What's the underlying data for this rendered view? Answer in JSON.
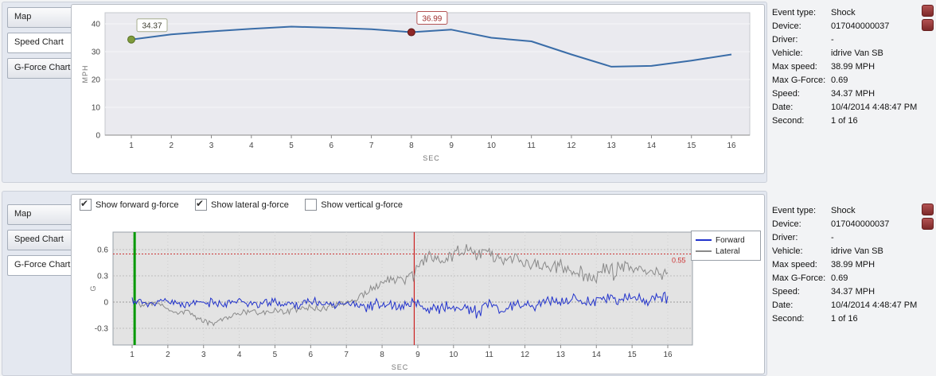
{
  "panels": {
    "top": {
      "tabs": [
        {
          "label": "Map",
          "selected": false
        },
        {
          "label": "Speed Chart",
          "selected": true
        },
        {
          "label": "G-Force Chart",
          "selected": false
        }
      ]
    },
    "bottom": {
      "tabs": [
        {
          "label": "Map",
          "selected": false
        },
        {
          "label": "Speed Chart",
          "selected": false
        },
        {
          "label": "G-Force Chart",
          "selected": true
        }
      ],
      "checkboxes": [
        {
          "label": "Show forward g-force",
          "checked": true
        },
        {
          "label": "Show lateral g-force",
          "checked": true
        },
        {
          "label": "Show vertical g-force",
          "checked": false
        }
      ]
    }
  },
  "event_info": {
    "rows": [
      {
        "label": "Event type:",
        "value": "Shock"
      },
      {
        "label": "Device:",
        "value": "017040000037"
      },
      {
        "label": "Driver:",
        "value": "-"
      },
      {
        "label": "Vehicle:",
        "value": "idrive Van SB"
      },
      {
        "label": "Max speed:",
        "value": "38.99 MPH"
      },
      {
        "label": "Max G-Force:",
        "value": "0.69"
      },
      {
        "label": "Speed:",
        "value": "34.37 MPH"
      },
      {
        "label": "Date:",
        "value": "10/4/2014 4:48:47 PM"
      },
      {
        "label": "Second:",
        "value": "1 of 16"
      }
    ]
  },
  "chart_data": [
    {
      "type": "line",
      "title": "",
      "xlabel": "SEC",
      "ylabel": "MPH",
      "x": [
        1,
        2,
        3,
        4,
        5,
        6,
        7,
        8,
        9,
        10,
        11,
        12,
        13,
        14,
        15,
        16
      ],
      "values": [
        34.37,
        36.2,
        37.3,
        38.2,
        38.99,
        38.6,
        38.1,
        36.99,
        37.9,
        35.0,
        33.7,
        29.0,
        24.6,
        24.9,
        26.8,
        29.0
      ],
      "ylim": [
        0,
        40
      ],
      "yticks": [
        0,
        10,
        20,
        30,
        40
      ],
      "grid": true,
      "line_color": "#3a6da8",
      "plot_bg": "#eaeaef",
      "markers": [
        {
          "x": 1,
          "y": 34.37,
          "label": "34.37",
          "dot_color": "#7e9b3c",
          "dot_stroke": "#5a7226",
          "box_border": "#a6ac8e",
          "text_color": "#3c3c2e"
        },
        {
          "x": 8,
          "y": 36.99,
          "label": "36.99",
          "dot_color": "#8e2727",
          "dot_stroke": "#5e1616",
          "box_border": "#b35454",
          "text_color": "#a03030"
        }
      ]
    },
    {
      "type": "line",
      "title": "",
      "xlabel": "SEC",
      "ylabel": "G",
      "xticks": [
        1,
        2,
        3,
        4,
        5,
        6,
        7,
        8,
        9,
        10,
        11,
        12,
        13,
        14,
        15,
        16
      ],
      "yticks": [
        -0.3,
        0,
        0.3,
        0.6
      ],
      "ylim": [
        -0.49,
        0.8
      ],
      "grid": true,
      "plot_bg": "#e3e3e3",
      "legend_position": "right",
      "threshold": {
        "value": 0.55,
        "label": "0.55",
        "color": "#cc3333"
      },
      "vlines": [
        {
          "x": 1.07,
          "color": "#009900",
          "width": 3
        },
        {
          "x": 8.9,
          "color": "#cc2222",
          "width": 1.2
        }
      ],
      "series": [
        {
          "name": "Forward",
          "color": "#2233cc",
          "seed": 11,
          "anchors": [
            [
              1,
              0.02
            ],
            [
              1.5,
              -0.02
            ],
            [
              2,
              0.01
            ],
            [
              2.5,
              -0.03
            ],
            [
              3,
              0.0
            ],
            [
              3.5,
              -0.02
            ],
            [
              4,
              0.01
            ],
            [
              4.5,
              -0.02
            ],
            [
              5,
              0.0
            ],
            [
              5.5,
              -0.03
            ],
            [
              6,
              0.0
            ],
            [
              6.5,
              -0.02
            ],
            [
              7,
              -0.01
            ],
            [
              7.5,
              -0.05
            ],
            [
              8,
              -0.02
            ],
            [
              8.5,
              -0.07
            ],
            [
              9,
              -0.03
            ],
            [
              9.3,
              -0.1
            ],
            [
              9.6,
              -0.04
            ],
            [
              10,
              -0.09
            ],
            [
              10.3,
              -0.03
            ],
            [
              10.6,
              -0.12
            ],
            [
              11,
              -0.04
            ],
            [
              11.4,
              -0.1
            ],
            [
              11.8,
              -0.02
            ],
            [
              12.2,
              -0.06
            ],
            [
              12.6,
              0.02
            ],
            [
              13,
              -0.01
            ],
            [
              13.4,
              0.05
            ],
            [
              13.8,
              0.0
            ],
            [
              14.2,
              0.06
            ],
            [
              14.6,
              0.02
            ],
            [
              15,
              0.05
            ],
            [
              15.4,
              0.01
            ],
            [
              15.7,
              0.06
            ],
            [
              16,
              0.04
            ]
          ],
          "noise": [
            [
              1,
              0.035
            ],
            [
              7,
              0.035
            ],
            [
              8,
              0.05
            ],
            [
              9,
              0.06
            ],
            [
              11,
              0.06
            ],
            [
              12,
              0.045
            ],
            [
              16,
              0.045
            ]
          ]
        },
        {
          "name": "Lateral",
          "color": "#8a8a8a",
          "seed": 97,
          "anchors": [
            [
              1,
              0.02
            ],
            [
              1.3,
              -0.04
            ],
            [
              1.6,
              0.01
            ],
            [
              2,
              -0.08
            ],
            [
              2.3,
              -0.13
            ],
            [
              2.6,
              -0.1
            ],
            [
              3,
              -0.22
            ],
            [
              3.3,
              -0.24
            ],
            [
              3.6,
              -0.18
            ],
            [
              4,
              -0.13
            ],
            [
              4.3,
              -0.1
            ],
            [
              4.6,
              -0.13
            ],
            [
              5,
              -0.09
            ],
            [
              5.3,
              -0.12
            ],
            [
              5.6,
              -0.08
            ],
            [
              6,
              -0.06
            ],
            [
              6.3,
              -0.09
            ],
            [
              6.6,
              -0.04
            ],
            [
              7,
              -0.02
            ],
            [
              7.3,
              0.05
            ],
            [
              7.6,
              0.12
            ],
            [
              8,
              0.22
            ],
            [
              8.3,
              0.28
            ],
            [
              8.6,
              0.24
            ],
            [
              8.9,
              0.32
            ],
            [
              9.1,
              0.48
            ],
            [
              9.4,
              0.5
            ],
            [
              9.7,
              0.46
            ],
            [
              9.9,
              0.52
            ],
            [
              10.1,
              0.6
            ],
            [
              10.3,
              0.55
            ],
            [
              10.5,
              0.62
            ],
            [
              10.7,
              0.52
            ],
            [
              11,
              0.56
            ],
            [
              11.3,
              0.5
            ],
            [
              11.6,
              0.52
            ],
            [
              12,
              0.45
            ],
            [
              12.3,
              0.42
            ],
            [
              12.6,
              0.38
            ],
            [
              13,
              0.42
            ],
            [
              13.3,
              0.36
            ],
            [
              13.6,
              0.32
            ],
            [
              14,
              0.28
            ],
            [
              14.2,
              0.42
            ],
            [
              14.5,
              0.33
            ],
            [
              14.8,
              0.42
            ],
            [
              15,
              0.36
            ],
            [
              15.3,
              0.39
            ],
            [
              15.6,
              0.34
            ],
            [
              16,
              0.3
            ]
          ],
          "noise": [
            [
              1,
              0.025
            ],
            [
              7,
              0.025
            ],
            [
              8,
              0.04
            ],
            [
              9,
              0.055
            ],
            [
              13,
              0.06
            ],
            [
              14,
              0.07
            ],
            [
              16,
              0.05
            ]
          ]
        }
      ]
    }
  ]
}
